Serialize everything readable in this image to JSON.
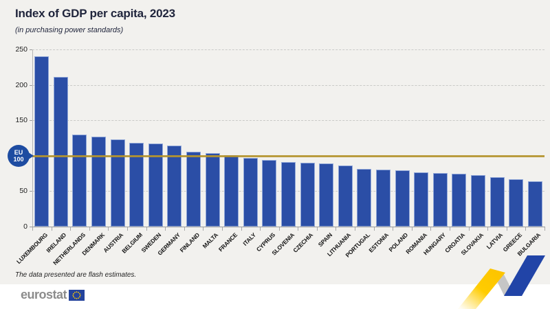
{
  "chart_data": {
    "type": "bar",
    "title": "Index of GDP per capita, 2023",
    "subtitle": "(in purchasing power standards)",
    "categories": [
      "LUXEMBOURG",
      "IRELAND",
      "NETHERLANDS",
      "DENMARK",
      "AUSTRIA",
      "BELGIUM",
      "SWEDEN",
      "GERMANY",
      "FINLAND",
      "MALTA",
      "FRANCE",
      "ITALY",
      "CYPRUS",
      "SLOVENIA",
      "CZECHIA",
      "SPAIN",
      "LITHUANIA",
      "PORTUGAL",
      "ESTONIA",
      "POLAND",
      "ROMANIA",
      "HUNGARY",
      "CROATIA",
      "SLOVAKIA",
      "LATVIA",
      "GREECE",
      "BULGARIA"
    ],
    "values": [
      240,
      211,
      130,
      127,
      123,
      118,
      117,
      114,
      106,
      104,
      101,
      97,
      94,
      91,
      90,
      89,
      86,
      81,
      80,
      79,
      77,
      76,
      75,
      73,
      70,
      67,
      64
    ],
    "xlabel": "",
    "ylabel": "",
    "ylim": [
      0,
      250
    ],
    "yticks_shown": [
      0,
      50,
      150,
      200,
      250
    ],
    "grid": "horizontal-dashed",
    "legend": "none",
    "reference_line": {
      "value": 100,
      "label": "EU 100"
    },
    "bar_color": "#2b4ea6",
    "reference_color": "#b5952f"
  },
  "eu_badge": {
    "line1": "EU",
    "line2": "100"
  },
  "footnote": "The data presented are flash estimates.",
  "footer": {
    "logo_text": "eurostat"
  },
  "colors": {
    "background": "#f2f1ee",
    "bar": "#2b4ea6",
    "reference_line": "#b5952f",
    "badge_blue": "#1e4ca1",
    "logo_gray": "#8c8c8c",
    "flag_blue": "#24439c",
    "star_yellow": "#ffcc00",
    "swoosh_yellow": "#ffcc00",
    "swoosh_gray": "#c6c6c6",
    "swoosh_blue": "#2144a7"
  }
}
